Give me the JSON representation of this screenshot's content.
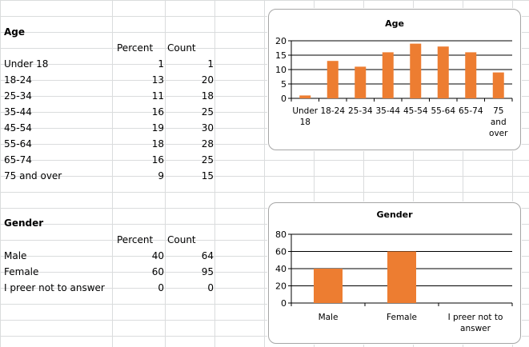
{
  "sheet": {
    "age": {
      "section_title": "Age",
      "col_percent": "Percent",
      "col_count": "Count",
      "rows": [
        {
          "label": "Under 18",
          "percent": "1",
          "count": "1"
        },
        {
          "label": "18-24",
          "percent": "13",
          "count": "20"
        },
        {
          "label": "25-34",
          "percent": "11",
          "count": "18"
        },
        {
          "label": "35-44",
          "percent": "16",
          "count": "25"
        },
        {
          "label": "45-54",
          "percent": "19",
          "count": "30"
        },
        {
          "label": "55-64",
          "percent": "18",
          "count": "28"
        },
        {
          "label": "65-74",
          "percent": "16",
          "count": "25"
        },
        {
          "label": "75 and over",
          "percent": "9",
          "count": "15"
        }
      ]
    },
    "gender": {
      "section_title": "Gender",
      "col_percent": "Percent",
      "col_count": "Count",
      "rows": [
        {
          "label": "Male",
          "percent": "40",
          "count": "64"
        },
        {
          "label": "Female",
          "percent": "60",
          "count": "95"
        },
        {
          "label": "I preer not to answer",
          "percent": "0",
          "count": "0"
        }
      ]
    }
  },
  "chart_data": [
    {
      "type": "bar",
      "title": "Age",
      "categories": [
        "Under 18",
        "18-24",
        "25-34",
        "35-44",
        "45-54",
        "55-64",
        "65-74",
        "75 and over"
      ],
      "category_lines": [
        [
          "Under",
          "18"
        ],
        [
          "18-24"
        ],
        [
          "25-34"
        ],
        [
          "35-44"
        ],
        [
          "45-54"
        ],
        [
          "55-64"
        ],
        [
          "65-74"
        ],
        [
          "75",
          "and",
          "over"
        ]
      ],
      "values": [
        1,
        13,
        11,
        16,
        19,
        18,
        16,
        9
      ],
      "ylim": [
        0,
        20
      ],
      "yticks": [
        0,
        5,
        10,
        15,
        20
      ],
      "grid": true,
      "bar_color": "#ed7d31",
      "xlabel": "",
      "ylabel": ""
    },
    {
      "type": "bar",
      "title": "Gender",
      "categories": [
        "Male",
        "Female",
        "I preer not to answer"
      ],
      "category_lines": [
        [
          "Male"
        ],
        [
          "Female"
        ],
        [
          "I preer not to",
          "answer"
        ]
      ],
      "values": [
        40,
        60,
        0
      ],
      "ylim": [
        0,
        80
      ],
      "yticks": [
        0,
        20,
        40,
        60,
        80
      ],
      "grid": true,
      "bar_color": "#ed7d31",
      "xlabel": "",
      "ylabel": ""
    }
  ]
}
